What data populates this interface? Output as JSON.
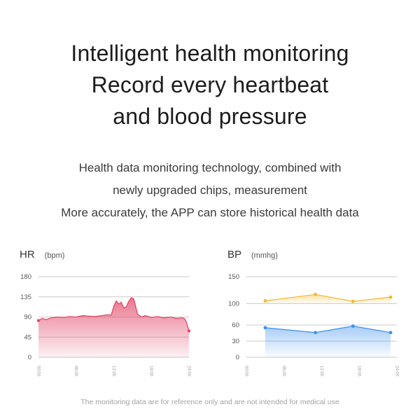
{
  "headline": [
    "Intelligent health monitoring",
    "Record every heartbeat",
    "and blood pressure"
  ],
  "description": [
    "Health data monitoring technology, combined with",
    "newly upgraded chips, measurement",
    "More accurately, the APP can store historical health data"
  ],
  "footer": "The monitoring data are for reference only and are not intended for medical use",
  "chart_data": [
    {
      "type": "area",
      "title": "HR",
      "unit": "(bpm)",
      "ylim": [
        0,
        180
      ],
      "yticks": [
        "0",
        "45",
        "90",
        "135",
        "180"
      ],
      "xticks": [
        "00:00",
        "06:00",
        "12:00",
        "18:00",
        "24:00"
      ],
      "grid": true,
      "color": "#e24a6a",
      "x": [
        0,
        0.6,
        1.2,
        2,
        3,
        4,
        5,
        6,
        7,
        8,
        9,
        10,
        11,
        11.6,
        12,
        12.4,
        12.8,
        13.2,
        13.6,
        14,
        14.4,
        14.8,
        15.2,
        15.8,
        16.5,
        17,
        18,
        19,
        20,
        21,
        22,
        23,
        23.3,
        23.6,
        24
      ],
      "values": [
        82,
        87,
        84,
        88,
        90,
        89,
        91,
        90,
        93,
        92,
        91,
        93,
        95,
        94,
        114,
        126,
        119,
        123,
        110,
        113,
        125,
        133,
        130,
        96,
        90,
        93,
        89,
        91,
        88,
        90,
        87,
        88,
        86,
        78,
        59
      ]
    },
    {
      "type": "line",
      "title": "BP",
      "unit": "(mmhg)",
      "ylim": [
        0,
        150
      ],
      "yticks": [
        "0",
        "30",
        "60",
        "100",
        "150"
      ],
      "xticks": [
        "00:00",
        "06:00",
        "12:00",
        "18:00",
        "24:00"
      ],
      "grid": true,
      "x": [
        3,
        11,
        17,
        23
      ],
      "series": [
        {
          "values": [
            105,
            117,
            104,
            112
          ],
          "color": "#f2b830"
        },
        {
          "values": [
            55,
            46,
            58,
            46
          ],
          "color": "#3b8ff0"
        }
      ]
    }
  ]
}
